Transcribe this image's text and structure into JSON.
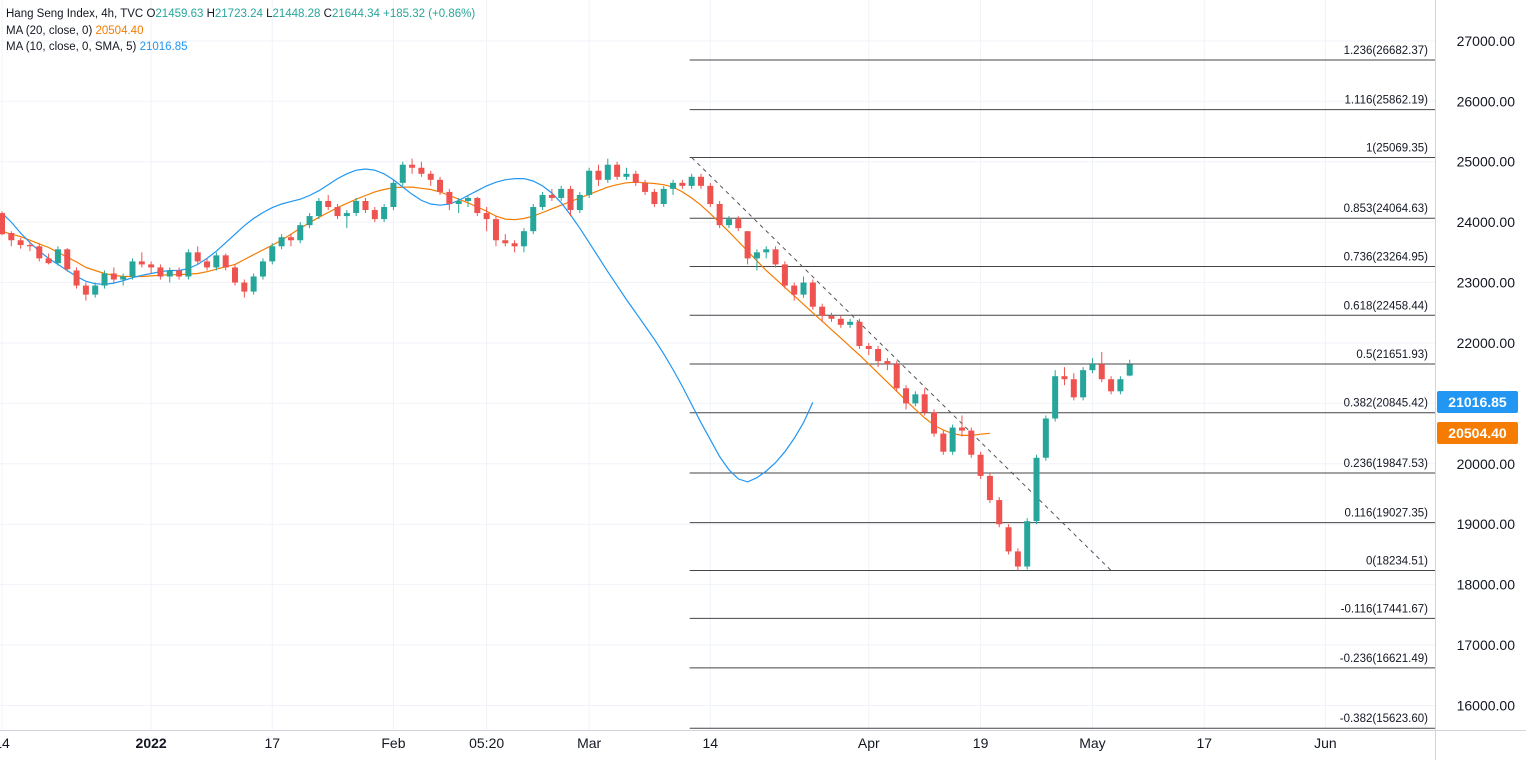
{
  "legend": {
    "symbol": "Hang Seng Index, 4h, TVC",
    "o_label": "O",
    "o_value": "21459.63",
    "h_label": "H",
    "h_value": "21723.24",
    "l_label": "L",
    "l_value": "21448.28",
    "c_label": "C",
    "c_value": "21644.34",
    "change": "+185.32 (+0.86%)",
    "ma20_label": "MA (20, close, 0)",
    "ma20_value": "20504.40",
    "ma10_label": "MA (10, close, 0, SMA, 5)",
    "ma10_value": "21016.85"
  },
  "price_tags": {
    "ma10": "21016.85",
    "ma20": "20504.40"
  },
  "colors": {
    "up": "#26a69a",
    "down": "#ef5350",
    "ma20": "#f57c00",
    "ma10": "#2196f3",
    "grid": "#f0f3fa",
    "fib": "#454545",
    "axis_text": "#131722"
  },
  "chart_data": {
    "type": "candlestick",
    "title": "Hang Seng Index, 4h, TVC",
    "ylim": [
      15600,
      27600
    ],
    "y_ticks": [
      "27000.00",
      "26000.00",
      "25000.00",
      "24000.00",
      "23000.00",
      "22000.00",
      "21000.00",
      "20000.00",
      "19000.00",
      "18000.00",
      "17000.00",
      "16000.00"
    ],
    "y_tick_values": [
      27000,
      26000,
      25000,
      24000,
      23000,
      22000,
      21000,
      20000,
      19000,
      18000,
      17000,
      16000
    ],
    "x_ticks": [
      "14",
      "2022",
      "17",
      "Feb",
      "05:20",
      "Mar",
      "14",
      "Apr",
      "19",
      "May",
      "17",
      "Jun"
    ],
    "x_tick_index": [
      0,
      16,
      29,
      42,
      52,
      63,
      76,
      93,
      105,
      117,
      129,
      142
    ],
    "x_tick_bold": [
      false,
      true,
      false,
      false,
      false,
      false,
      false,
      false,
      false,
      false,
      false,
      false
    ],
    "bar_count": 158,
    "candles": [
      [
        24150,
        24180,
        23780,
        23800
      ],
      [
        23820,
        23850,
        23600,
        23700
      ],
      [
        23700,
        23740,
        23560,
        23620
      ],
      [
        23620,
        23680,
        23520,
        23600
      ],
      [
        23600,
        23650,
        23350,
        23400
      ],
      [
        23400,
        23480,
        23300,
        23320
      ],
      [
        23320,
        23600,
        23280,
        23550
      ],
      [
        23550,
        23570,
        23180,
        23220
      ],
      [
        23200,
        23250,
        22900,
        22950
      ],
      [
        22950,
        23000,
        22700,
        22800
      ],
      [
        22800,
        23000,
        22750,
        22950
      ],
      [
        22950,
        23200,
        22900,
        23150
      ],
      [
        23150,
        23250,
        23000,
        23050
      ],
      [
        23050,
        23150,
        22950,
        23100
      ],
      [
        23100,
        23400,
        23050,
        23350
      ],
      [
        23350,
        23500,
        23250,
        23300
      ],
      [
        23300,
        23350,
        23150,
        23250
      ],
      [
        23250,
        23300,
        23050,
        23100
      ],
      [
        23100,
        23250,
        23000,
        23200
      ],
      [
        23200,
        23250,
        23050,
        23100
      ],
      [
        23100,
        23550,
        23050,
        23500
      ],
      [
        23500,
        23600,
        23300,
        23350
      ],
      [
        23350,
        23400,
        23200,
        23250
      ],
      [
        23250,
        23500,
        23200,
        23450
      ],
      [
        23450,
        23480,
        23200,
        23250
      ],
      [
        23250,
        23300,
        22950,
        23000
      ],
      [
        23000,
        23050,
        22750,
        22850
      ],
      [
        22850,
        23150,
        22800,
        23100
      ],
      [
        23100,
        23400,
        23050,
        23350
      ],
      [
        23350,
        23650,
        23300,
        23600
      ],
      [
        23600,
        23800,
        23550,
        23750
      ],
      [
        23750,
        23800,
        23600,
        23700
      ],
      [
        23700,
        24000,
        23650,
        23950
      ],
      [
        23950,
        24150,
        23900,
        24100
      ],
      [
        24100,
        24400,
        24050,
        24350
      ],
      [
        24350,
        24450,
        24200,
        24250
      ],
      [
        24250,
        24300,
        24050,
        24100
      ],
      [
        24100,
        24200,
        23900,
        24150
      ],
      [
        24150,
        24400,
        24100,
        24350
      ],
      [
        24350,
        24400,
        24150,
        24200
      ],
      [
        24200,
        24250,
        24000,
        24050
      ],
      [
        24050,
        24300,
        24000,
        24250
      ],
      [
        24250,
        24700,
        24200,
        24650
      ],
      [
        24650,
        25000,
        24600,
        24950
      ],
      [
        24950,
        25050,
        24800,
        24900
      ],
      [
        24900,
        25000,
        24750,
        24800
      ],
      [
        24800,
        24850,
        24600,
        24700
      ],
      [
        24700,
        24750,
        24450,
        24500
      ],
      [
        24500,
        24550,
        24200,
        24300
      ],
      [
        24300,
        24400,
        24150,
        24350
      ],
      [
        24350,
        24450,
        24250,
        24400
      ],
      [
        24400,
        24420,
        24100,
        24150
      ],
      [
        24150,
        24250,
        23850,
        24050
      ],
      [
        24050,
        24100,
        23600,
        23700
      ],
      [
        23700,
        23800,
        23600,
        23650
      ],
      [
        23650,
        23700,
        23500,
        23600
      ],
      [
        23600,
        23900,
        23500,
        23850
      ],
      [
        23850,
        24300,
        23800,
        24250
      ],
      [
        24250,
        24500,
        24200,
        24450
      ],
      [
        24450,
        24550,
        24350,
        24400
      ],
      [
        24400,
        24600,
        24350,
        24550
      ],
      [
        24550,
        24600,
        24100,
        24200
      ],
      [
        24200,
        24500,
        24150,
        24450
      ],
      [
        24450,
        24900,
        24400,
        24850
      ],
      [
        24850,
        24950,
        24600,
        24700
      ],
      [
        24700,
        25050,
        24650,
        24950
      ],
      [
        24950,
        25000,
        24700,
        24750
      ],
      [
        24750,
        24900,
        24700,
        24800
      ],
      [
        24800,
        24850,
        24600,
        24650
      ],
      [
        24650,
        24700,
        24450,
        24500
      ],
      [
        24500,
        24550,
        24250,
        24300
      ],
      [
        24300,
        24600,
        24250,
        24550
      ],
      [
        24550,
        24700,
        24450,
        24650
      ],
      [
        24650,
        24700,
        24550,
        24600
      ],
      [
        24600,
        24800,
        24550,
        24750
      ],
      [
        24750,
        24800,
        24550,
        24600
      ],
      [
        24600,
        24650,
        24250,
        24300
      ],
      [
        24300,
        24350,
        23900,
        23950
      ],
      [
        23950,
        24100,
        23900,
        24050
      ],
      [
        24050,
        24100,
        23850,
        23900
      ],
      [
        23850,
        23850,
        23300,
        23400
      ],
      [
        23400,
        23550,
        23200,
        23500
      ],
      [
        23500,
        23600,
        23400,
        23550
      ],
      [
        23550,
        23600,
        23250,
        23300
      ],
      [
        23300,
        23350,
        22900,
        22950
      ],
      [
        22950,
        23000,
        22700,
        22800
      ],
      [
        22800,
        23100,
        22750,
        23000
      ],
      [
        23000,
        23050,
        22550,
        22600
      ],
      [
        22600,
        22650,
        22350,
        22450
      ],
      [
        22450,
        22500,
        22350,
        22400
      ],
      [
        22400,
        22450,
        22250,
        22300
      ],
      [
        22300,
        22400,
        22250,
        22350
      ],
      [
        22350,
        22400,
        21900,
        21950
      ],
      [
        21950,
        22000,
        21800,
        21900
      ],
      [
        21900,
        21950,
        21600,
        21700
      ],
      [
        21700,
        21750,
        21550,
        21650
      ],
      [
        21650,
        21700,
        21200,
        21250
      ],
      [
        21250,
        21300,
        20900,
        21000
      ],
      [
        21000,
        21200,
        20950,
        21150
      ],
      [
        21150,
        21250,
        20800,
        20850
      ],
      [
        20850,
        20900,
        20450,
        20500
      ],
      [
        20500,
        20550,
        20150,
        20200
      ],
      [
        20200,
        20650,
        20150,
        20600
      ],
      [
        20600,
        20800,
        20450,
        20550
      ],
      [
        20550,
        20600,
        20100,
        20150
      ],
      [
        20150,
        20200,
        19750,
        19800
      ],
      [
        19800,
        19850,
        19350,
        19400
      ],
      [
        19400,
        19450,
        18950,
        19000
      ],
      [
        18950,
        19000,
        18500,
        18550
      ],
      [
        18550,
        18600,
        18234,
        18300
      ],
      [
        18300,
        19100,
        18250,
        19050
      ],
      [
        19050,
        20150,
        19000,
        20100
      ],
      [
        20100,
        20800,
        20050,
        20750
      ],
      [
        20750,
        21550,
        20700,
        21450
      ],
      [
        21450,
        21600,
        21300,
        21400
      ],
      [
        21400,
        21500,
        21050,
        21100
      ],
      [
        21100,
        21600,
        21050,
        21550
      ],
      [
        21550,
        21750,
        21500,
        21650
      ],
      [
        21650,
        21850,
        21350,
        21400
      ],
      [
        21400,
        21450,
        21150,
        21200
      ],
      [
        21200,
        21450,
        21150,
        21400
      ],
      [
        21460,
        21723,
        21448,
        21644
      ]
    ],
    "ma20": [
      23850,
      23800,
      23760,
      23700,
      23640,
      23580,
      23500,
      23420,
      23340,
      23250,
      23200,
      23150,
      23120,
      23100,
      23100,
      23100,
      23110,
      23120,
      23130,
      23130,
      23140,
      23150,
      23180,
      23220,
      23260,
      23300,
      23380,
      23460,
      23540,
      23620,
      23700,
      23800,
      23900,
      23990,
      24080,
      24160,
      24240,
      24310,
      24380,
      24440,
      24500,
      24540,
      24570,
      24580,
      24580,
      24560,
      24540,
      24500,
      24440,
      24380,
      24320,
      24250,
      24180,
      24100,
      24050,
      24040,
      24060,
      24100,
      24160,
      24220,
      24280,
      24340,
      24400,
      24460,
      24520,
      24580,
      24620,
      24650,
      24660,
      24650,
      24640,
      24620,
      24580,
      24500,
      24400,
      24280,
      24140,
      23990,
      23840,
      23680,
      23520,
      23360,
      23200,
      23060,
      22920,
      22780,
      22640,
      22500,
      22360,
      22220,
      22080,
      21940,
      21800,
      21650,
      21500,
      21350,
      21200,
      21050,
      20900,
      20760,
      20640,
      20560,
      20500,
      20470,
      20470,
      20490,
      20504
    ],
    "ma10": [
      24150,
      24000,
      23820,
      23660,
      23520,
      23400,
      23300,
      23200,
      23100,
      23020,
      22980,
      22970,
      22990,
      23030,
      23080,
      23120,
      23150,
      23180,
      23200,
      23200,
      23230,
      23300,
      23400,
      23520,
      23660,
      23800,
      23940,
      24060,
      24160,
      24240,
      24300,
      24340,
      24380,
      24440,
      24520,
      24620,
      24720,
      24800,
      24860,
      24880,
      24860,
      24800,
      24700,
      24580,
      24460,
      24360,
      24300,
      24280,
      24300,
      24360,
      24440,
      24520,
      24600,
      24660,
      24700,
      24720,
      24720,
      24680,
      24600,
      24480,
      24320,
      24120,
      23900,
      23660,
      23420,
      23180,
      22950,
      22720,
      22500,
      22280,
      22060,
      21820,
      21560,
      21280,
      20980,
      20680,
      20400,
      20120,
      19900,
      19750,
      19700,
      19770,
      19880,
      20020,
      20200,
      20420,
      20680,
      21016
    ],
    "fib_levels": [
      {
        "ratio": "1.236",
        "value": "26682.37"
      },
      {
        "ratio": "1.116",
        "value": "25862.19"
      },
      {
        "ratio": "1",
        "value": "25069.35"
      },
      {
        "ratio": "0.853",
        "value": "24064.63"
      },
      {
        "ratio": "0.736",
        "value": "23264.95"
      },
      {
        "ratio": "0.618",
        "value": "22458.44"
      },
      {
        "ratio": "0.5",
        "value": "21651.93"
      },
      {
        "ratio": "0.382",
        "value": "20845.42"
      },
      {
        "ratio": "0.236",
        "value": "19847.53"
      },
      {
        "ratio": "0.116",
        "value": "19027.35"
      },
      {
        "ratio": "0",
        "value": "18234.51"
      },
      {
        "ratio": "-0.116",
        "value": "17441.67"
      },
      {
        "ratio": "-0.236",
        "value": "16621.49"
      },
      {
        "ratio": "-0.382",
        "value": "15623.60"
      }
    ],
    "fib_start_index": 74,
    "fib_trend": {
      "from_index": 74,
      "from_value": 25069.35,
      "to_index": 119,
      "to_value": 18234.51
    },
    "ma20_start_index": 51,
    "ma10_start_index": 70,
    "grid": true
  }
}
